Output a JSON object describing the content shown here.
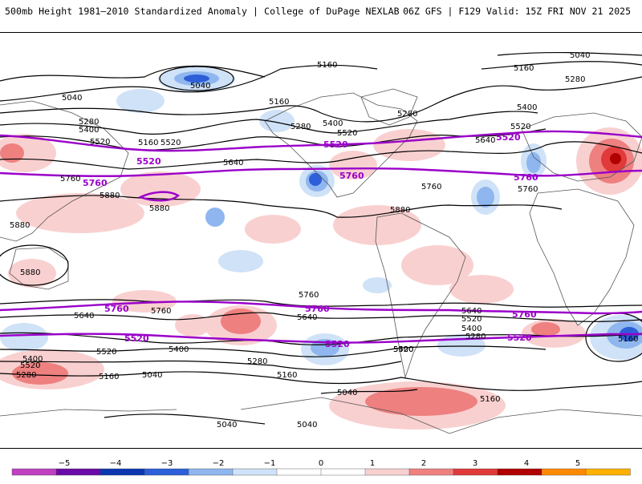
{
  "header": {
    "title_left": "500mb Height 1981–2010 Standardized Anomaly | College of DuPage NEXLAB",
    "title_right": "06Z GFS | F129 Valid: 15Z FRI NOV 21 2025"
  },
  "colors": {
    "contour_black": "#000000",
    "contour_purple": "#9a00c9",
    "positive_1": "#f9d0d0",
    "positive_2": "#ee8080",
    "positive_3": "#e03a3a",
    "positive_4": "#b00000",
    "negative_1": "#cfe2f7",
    "negative_2": "#8fb6ee",
    "negative_3": "#2c5fd8",
    "negative_4": "#0a36b0"
  },
  "contour_labels": [
    "5040",
    "5040",
    "5040",
    "5040",
    "5040",
    "5040",
    "5040",
    "5160",
    "5160",
    "5160",
    "5160",
    "5160",
    "5160",
    "5160",
    "5160",
    "5280",
    "5280",
    "5280",
    "5280",
    "5280",
    "5280",
    "5280",
    "5400",
    "5400",
    "5400",
    "5400",
    "5400",
    "5400",
    "5400",
    "5520",
    "5520",
    "5520",
    "5520",
    "5520",
    "5520",
    "5520",
    "5520",
    "5640",
    "5640",
    "5640",
    "5640",
    "5640",
    "5760",
    "5760",
    "5760",
    "5760",
    "5760",
    "5880",
    "5880",
    "5880",
    "5880",
    "5880"
  ],
  "highlight_labels": [
    "5520",
    "5520",
    "5520",
    "5520",
    "5520",
    "5520",
    "5760",
    "5760",
    "5760",
    "5760",
    "5760",
    "5760"
  ],
  "colorbar": {
    "ticks": [
      "−5",
      "−4",
      "−3",
      "−2",
      "−1",
      "0",
      "1",
      "2",
      "3",
      "4",
      "5"
    ],
    "colors": [
      "#c040c0",
      "#6a0aa8",
      "#0a36b0",
      "#2c5fd8",
      "#8fb6ee",
      "#cfe2f7",
      "#ffffff",
      "#ffffff",
      "#f9d0d0",
      "#ee8080",
      "#e03a3a",
      "#b00000",
      "#ff8a00",
      "#ffb000"
    ]
  }
}
